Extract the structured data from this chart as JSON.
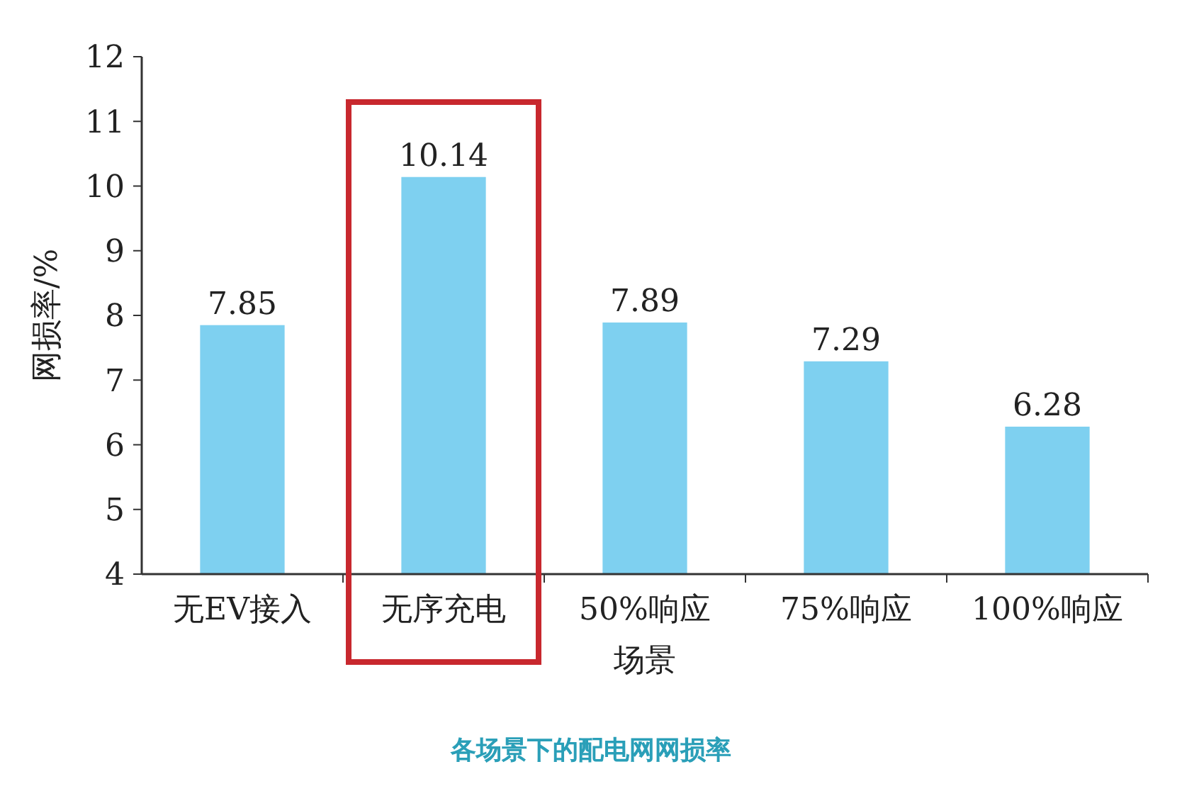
{
  "chart_data": {
    "type": "bar",
    "title": "各场景下的配电网网损率",
    "xlabel": "场景",
    "ylabel": "网损率/%",
    "categories": [
      "无EV接入",
      "无序充电",
      "50%响应",
      "75%响应",
      "100%响应"
    ],
    "values": [
      7.85,
      10.14,
      7.89,
      7.29,
      6.28
    ],
    "color": "#7ed0f0",
    "data_labels": true,
    "ylim": [
      4,
      12
    ],
    "yticks": [
      4,
      5,
      6,
      7,
      8,
      9,
      10,
      11,
      12
    ],
    "grid": false
  }
}
